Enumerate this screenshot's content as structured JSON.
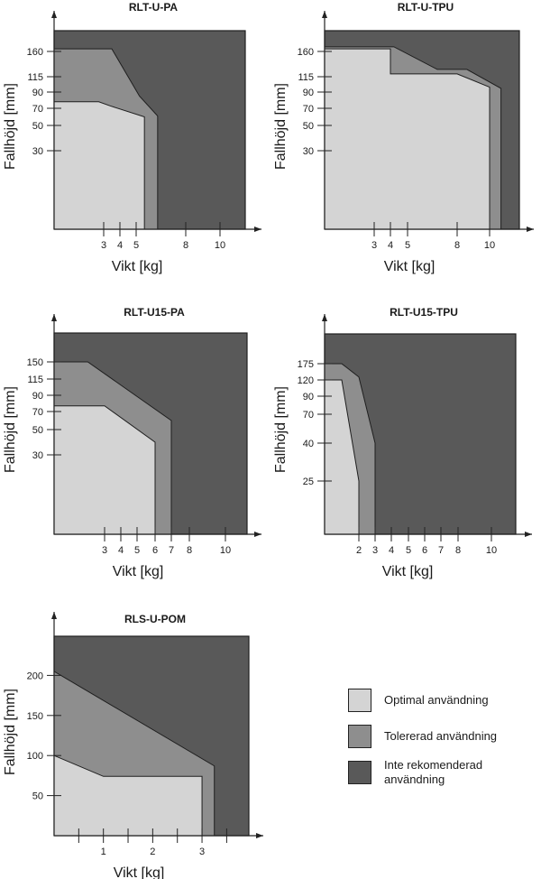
{
  "colors": {
    "optimal": "#d4d4d4",
    "tolerated": "#8e8e8e",
    "not_recommended": "#595959",
    "outline": "#1e1e1e"
  },
  "legend": [
    {
      "key": "optimal",
      "label": "Optimal användning"
    },
    {
      "key": "tolerated",
      "label": "Tolererad användning"
    },
    {
      "key": "not_recommended",
      "label": "Inte rekomenderad användning"
    }
  ],
  "chart_data": [
    {
      "type": "area",
      "title": "RLT-U-PA",
      "xlabel": "Vikt [kg]",
      "ylabel": "Fallhöjd [mm]",
      "x_ticks": [
        3,
        4,
        5,
        8,
        10
      ],
      "y_ticks": [
        30,
        50,
        70,
        90,
        115,
        160
      ],
      "xlim": [
        0,
        11.5
      ],
      "ylim_max": 240,
      "regions": {
        "optimal": [
          [
            0,
            78
          ],
          [
            2.7,
            78
          ],
          [
            3.4,
            73
          ],
          [
            5.5,
            60
          ],
          [
            5.5,
            0
          ]
        ],
        "tolerated": [
          [
            0,
            170
          ],
          [
            3.5,
            170
          ],
          [
            5.2,
            85
          ],
          [
            6.3,
            61
          ],
          [
            6.3,
            0
          ]
        ]
      }
    },
    {
      "type": "area",
      "title": "RLT-U-TPU",
      "xlabel": "Vikt [kg]",
      "ylabel": "Fallhöjd [mm]",
      "x_ticks": [
        3,
        4,
        5,
        8,
        10
      ],
      "y_ticks": [
        30,
        50,
        70,
        90,
        115,
        160
      ],
      "xlim": [
        0,
        11.5
      ],
      "ylim_max": 240,
      "regions": {
        "optimal": [
          [
            0,
            170
          ],
          [
            4,
            170
          ],
          [
            4,
            120
          ],
          [
            8,
            120
          ],
          [
            10,
            98
          ],
          [
            10,
            0
          ]
        ],
        "tolerated": [
          [
            0,
            178
          ],
          [
            4.2,
            178
          ],
          [
            6.8,
            128
          ],
          [
            8.6,
            128
          ],
          [
            10.7,
            96
          ],
          [
            10.7,
            0
          ]
        ]
      }
    },
    {
      "type": "area",
      "title": "RLT-U15-PA",
      "xlabel": "Vikt [kg]",
      "ylabel": "Fallhöjd [mm]",
      "x_ticks": [
        3,
        4,
        5,
        6,
        7,
        8,
        10
      ],
      "y_ticks": [
        30,
        50,
        70,
        90,
        115,
        150
      ],
      "xlim": [
        0,
        11.5
      ],
      "ylim_max": 220,
      "regions": {
        "optimal": [
          [
            0,
            77
          ],
          [
            3,
            77
          ],
          [
            6,
            40
          ],
          [
            6,
            0
          ]
        ],
        "tolerated": [
          [
            0,
            150
          ],
          [
            2,
            150
          ],
          [
            7,
            60
          ],
          [
            7,
            0
          ]
        ]
      }
    },
    {
      "type": "area",
      "title": "RLT-U15-TPU",
      "xlabel": "Vikt [kg]",
      "ylabel": "Fallhöjd [mm]",
      "x_ticks": [
        2,
        3,
        4,
        5,
        6,
        7,
        8,
        10
      ],
      "y_ticks": [
        25,
        40,
        70,
        90,
        120,
        175
      ],
      "xlim": [
        0,
        11.5
      ],
      "ylim_max": 255,
      "regions": {
        "optimal": [
          [
            0,
            120
          ],
          [
            1,
            120
          ],
          [
            2,
            25
          ],
          [
            2,
            0
          ]
        ],
        "tolerated": [
          [
            0,
            175
          ],
          [
            1,
            175
          ],
          [
            2,
            130
          ],
          [
            3,
            40
          ],
          [
            3,
            0
          ]
        ]
      }
    },
    {
      "type": "area",
      "title": "RLS-U-POM",
      "xlabel": "Vikt [kg]",
      "ylabel": "Fallhöjd [mm]",
      "x_ticks": [
        1,
        2,
        3
      ],
      "x_minor_ticks": [
        0.5,
        1.5,
        2.5,
        3.5
      ],
      "y_ticks": [
        50,
        100,
        150,
        200
      ],
      "xlim": [
        0,
        3.95
      ],
      "ylim": [
        0,
        250
      ],
      "regions": {
        "optimal": [
          [
            0,
            100
          ],
          [
            1,
            74
          ],
          [
            3,
            74
          ],
          [
            3,
            0
          ]
        ],
        "tolerated": [
          [
            0,
            205
          ],
          [
            3.25,
            87
          ],
          [
            3.25,
            0
          ]
        ]
      }
    }
  ]
}
